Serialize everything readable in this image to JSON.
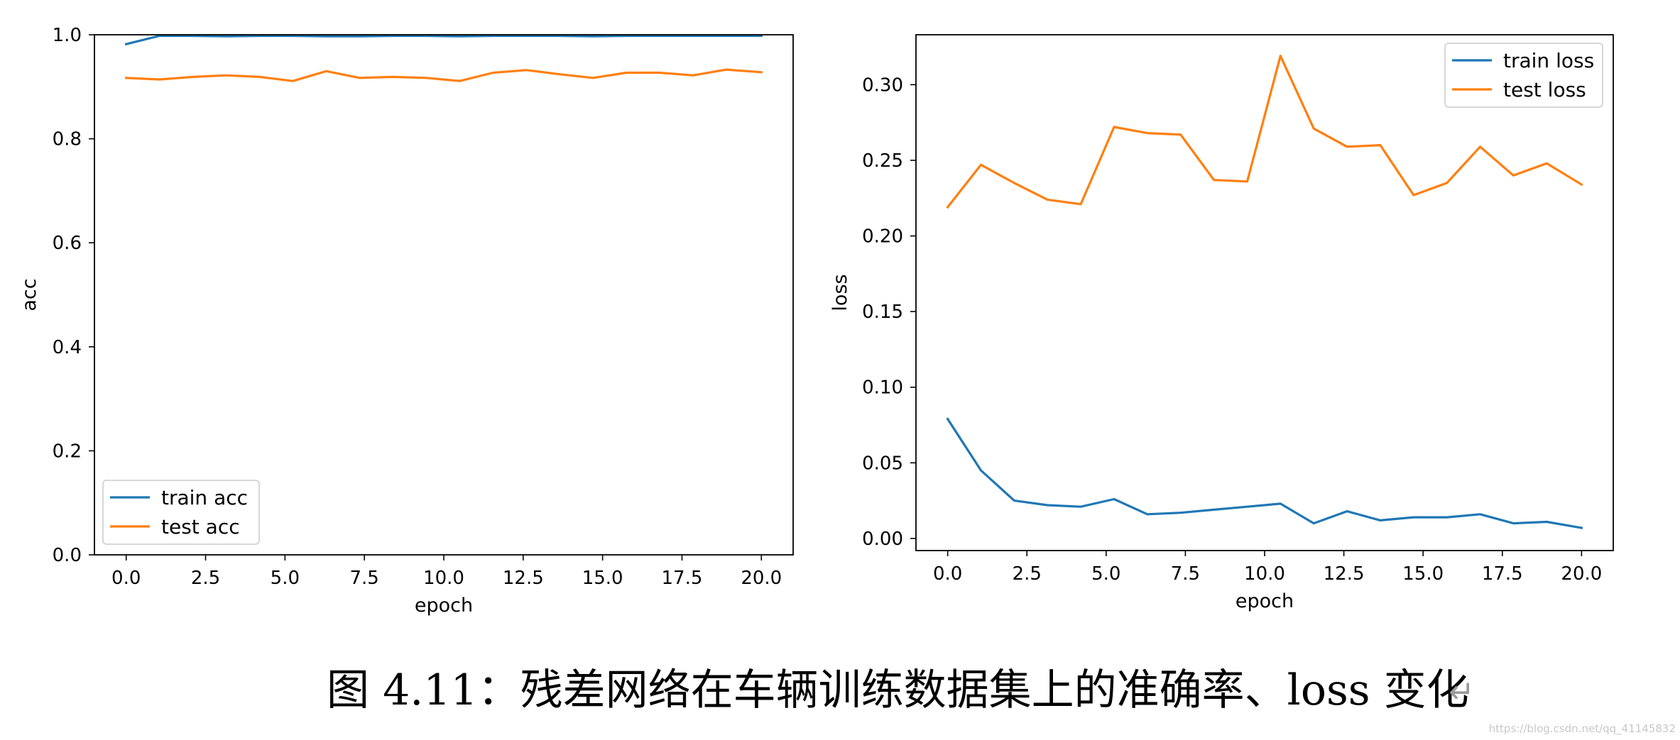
{
  "caption": {
    "text": "图 4.11：残差网络在车辆训练数据集上的准确率、loss 变化",
    "mark": "↵"
  },
  "watermark": "https://blog.csdn.net/qq_41145832",
  "colors": {
    "train": "#1f77b4",
    "test": "#ff7f0e",
    "axis": "#000000",
    "legend_border": "#cccccc"
  },
  "chart_data": [
    {
      "type": "line",
      "xlabel": "epoch",
      "ylabel": "acc",
      "xlim": [
        -1,
        21
      ],
      "ylim": [
        0.0,
        1.0
      ],
      "grid": false,
      "legend_position": "lower-left",
      "xticks": [
        0.0,
        2.5,
        5.0,
        7.5,
        10.0,
        12.5,
        15.0,
        17.5,
        20.0
      ],
      "xtick_labels": [
        "0.0",
        "2.5",
        "5.0",
        "7.5",
        "10.0",
        "12.5",
        "15.0",
        "17.5",
        "20.0"
      ],
      "yticks": [
        0.0,
        0.2,
        0.4,
        0.6,
        0.8,
        1.0
      ],
      "ytick_labels": [
        "0.0",
        "0.2",
        "0.4",
        "0.6",
        "0.8",
        "1.0"
      ],
      "x": [
        0,
        1.05,
        2.1,
        3.15,
        4.2,
        5.25,
        6.3,
        7.35,
        8.4,
        9.45,
        10.5,
        11.55,
        12.6,
        13.65,
        14.7,
        15.75,
        16.8,
        17.85,
        18.9,
        20
      ],
      "series": [
        {
          "name": "train acc",
          "color_key": "train",
          "values": [
            0.982,
            0.998,
            0.998,
            0.997,
            0.998,
            0.998,
            0.997,
            0.997,
            0.998,
            0.998,
            0.997,
            0.998,
            0.998,
            0.998,
            0.997,
            0.998,
            0.998,
            0.998,
            0.998,
            0.998
          ]
        },
        {
          "name": "test acc",
          "color_key": "test",
          "values": [
            0.917,
            0.914,
            0.919,
            0.922,
            0.919,
            0.911,
            0.93,
            0.917,
            0.919,
            0.917,
            0.911,
            0.927,
            0.932,
            0.924,
            0.917,
            0.927,
            0.927,
            0.922,
            0.933,
            0.928
          ]
        }
      ]
    },
    {
      "type": "line",
      "xlabel": "epoch",
      "ylabel": "loss",
      "xlim": [
        -1,
        21
      ],
      "ylim": [
        -0.008,
        0.333
      ],
      "grid": false,
      "legend_position": "upper-right",
      "xticks": [
        0.0,
        2.5,
        5.0,
        7.5,
        10.0,
        12.5,
        15.0,
        17.5,
        20.0
      ],
      "xtick_labels": [
        "0.0",
        "2.5",
        "5.0",
        "7.5",
        "10.0",
        "12.5",
        "15.0",
        "17.5",
        "20.0"
      ],
      "yticks": [
        0.0,
        0.05,
        0.1,
        0.15,
        0.2,
        0.25,
        0.3
      ],
      "ytick_labels": [
        "0.00",
        "0.05",
        "0.10",
        "0.15",
        "0.20",
        "0.25",
        "0.30"
      ],
      "x": [
        0,
        1.05,
        2.1,
        3.15,
        4.2,
        5.25,
        6.3,
        7.35,
        8.4,
        9.45,
        10.5,
        11.55,
        12.6,
        13.65,
        14.7,
        15.75,
        16.8,
        17.85,
        18.9,
        20
      ],
      "series": [
        {
          "name": "train loss",
          "color_key": "train",
          "values": [
            0.079,
            0.045,
            0.025,
            0.022,
            0.021,
            0.026,
            0.016,
            0.017,
            0.019,
            0.021,
            0.023,
            0.01,
            0.018,
            0.012,
            0.014,
            0.014,
            0.016,
            0.01,
            0.011,
            0.007
          ]
        },
        {
          "name": "test loss",
          "color_key": "test",
          "values": [
            0.219,
            0.247,
            0.235,
            0.224,
            0.221,
            0.272,
            0.268,
            0.267,
            0.237,
            0.236,
            0.319,
            0.271,
            0.259,
            0.26,
            0.227,
            0.235,
            0.259,
            0.24,
            0.248,
            0.234
          ]
        }
      ]
    }
  ]
}
